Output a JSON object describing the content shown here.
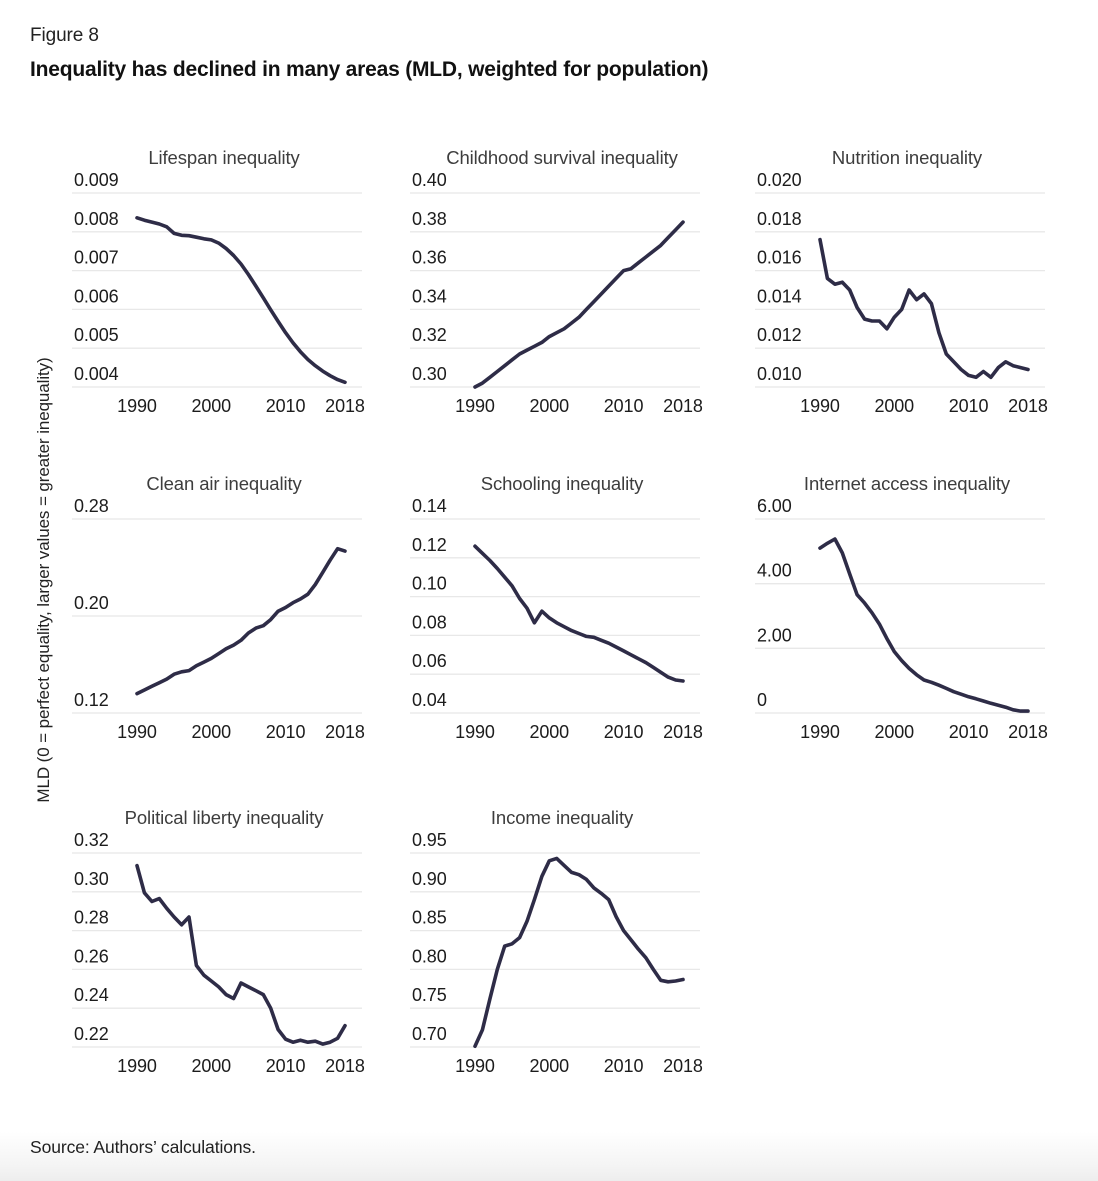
{
  "figure_label": "Figure 8",
  "title": "Inequality has declined in many areas (MLD, weighted for population)",
  "y_axis_label": "MLD (0 = perfect equality, larger values = greater inequality)",
  "source": "Source: Authors’ calculations.",
  "colors": {
    "line": "#2e2c47",
    "grid": "#e8e8e8",
    "tick_text": "#1c1c1c",
    "chart_title_text": "#3d3d3d"
  },
  "years": [
    1990,
    1991,
    1992,
    1993,
    1994,
    1995,
    1996,
    1997,
    1998,
    1999,
    2000,
    2001,
    2002,
    2003,
    2004,
    2005,
    2006,
    2007,
    2008,
    2009,
    2010,
    2011,
    2012,
    2013,
    2014,
    2015,
    2016,
    2017,
    2018
  ],
  "x_tick_labels": [
    "1990",
    "2000",
    "2010",
    "2018"
  ],
  "x_tick_years": [
    1990,
    2000,
    2010,
    2018
  ],
  "chart_data": [
    {
      "type": "line",
      "title": "Lifespan inequality",
      "y_tick_labels": [
        "0.009",
        "0.008",
        "0.007",
        "0.006",
        "0.005",
        "0.004"
      ],
      "y_tick_values": [
        0.009,
        0.008,
        0.007,
        0.006,
        0.005,
        0.004
      ],
      "values": [
        0.00836,
        0.0083,
        0.00825,
        0.0082,
        0.00813,
        0.00796,
        0.00791,
        0.0079,
        0.00786,
        0.00782,
        0.00779,
        0.00771,
        0.00757,
        0.00739,
        0.00717,
        0.0069,
        0.0066,
        0.0063,
        0.00599,
        0.00569,
        0.0054,
        0.00514,
        0.00491,
        0.00471,
        0.00455,
        0.00441,
        0.00429,
        0.00419,
        0.00412
      ]
    },
    {
      "type": "line",
      "title": "Childhood survival inequality",
      "y_tick_labels": [
        "0.40",
        "0.38",
        "0.36",
        "0.34",
        "0.32",
        "0.30"
      ],
      "y_tick_values": [
        0.4,
        0.38,
        0.36,
        0.34,
        0.32,
        0.3
      ],
      "values": [
        0.3,
        0.302,
        0.305,
        0.308,
        0.311,
        0.314,
        0.317,
        0.319,
        0.321,
        0.323,
        0.326,
        0.328,
        0.33,
        0.333,
        0.336,
        0.34,
        0.344,
        0.348,
        0.352,
        0.356,
        0.36,
        0.361,
        0.364,
        0.367,
        0.37,
        0.373,
        0.377,
        0.381,
        0.385
      ]
    },
    {
      "type": "line",
      "title": "Nutrition inequality",
      "y_tick_labels": [
        "0.020",
        "0.018",
        "0.016",
        "0.014",
        "0.012",
        "0.010"
      ],
      "y_tick_values": [
        0.02,
        0.018,
        0.016,
        0.014,
        0.012,
        0.01
      ],
      "values": [
        0.0176,
        0.0156,
        0.0153,
        0.0154,
        0.015,
        0.0141,
        0.0135,
        0.0134,
        0.0134,
        0.013,
        0.0136,
        0.014,
        0.015,
        0.0145,
        0.0148,
        0.0143,
        0.0128,
        0.0117,
        0.0113,
        0.0109,
        0.0106,
        0.0105,
        0.0108,
        0.0105,
        0.011,
        0.0113,
        0.0111,
        0.011,
        0.0109
      ]
    },
    {
      "type": "line",
      "title": "Clean air inequality",
      "y_tick_labels": [
        "0.28",
        "0.20",
        "0.12"
      ],
      "y_tick_values": [
        0.28,
        0.2,
        0.12
      ],
      "values": [
        0.136,
        0.139,
        0.142,
        0.145,
        0.148,
        0.152,
        0.154,
        0.155,
        0.159,
        0.162,
        0.165,
        0.169,
        0.173,
        0.176,
        0.18,
        0.186,
        0.19,
        0.192,
        0.197,
        0.204,
        0.207,
        0.211,
        0.214,
        0.218,
        0.226,
        0.236,
        0.246,
        0.2555,
        0.2535
      ]
    },
    {
      "type": "line",
      "title": "Schooling inequality",
      "y_tick_labels": [
        "0.14",
        "0.12",
        "0.10",
        "0.08",
        "0.06",
        "0.04"
      ],
      "y_tick_values": [
        0.14,
        0.12,
        0.1,
        0.08,
        0.06,
        0.04
      ],
      "values": [
        0.126,
        0.1223,
        0.1186,
        0.1145,
        0.11,
        0.1055,
        0.099,
        0.094,
        0.0865,
        0.0925,
        0.089,
        0.0865,
        0.0845,
        0.0825,
        0.081,
        0.0795,
        0.079,
        0.0775,
        0.076,
        0.074,
        0.072,
        0.07,
        0.068,
        0.066,
        0.0635,
        0.061,
        0.0585,
        0.057,
        0.0565
      ]
    },
    {
      "type": "line",
      "title": "Internet access inequality",
      "y_tick_labels": [
        "6.00",
        "4.00",
        "2.00",
        "0"
      ],
      "y_tick_values": [
        6.0,
        4.0,
        2.0,
        0.0
      ],
      "values": [
        5.1,
        5.25,
        5.38,
        4.95,
        4.3,
        3.66,
        3.4,
        3.1,
        2.75,
        2.3,
        1.9,
        1.62,
        1.38,
        1.18,
        1.02,
        0.95,
        0.86,
        0.76,
        0.66,
        0.58,
        0.5,
        0.44,
        0.37,
        0.3,
        0.24,
        0.18,
        0.1,
        0.06,
        0.06
      ]
    },
    {
      "type": "line",
      "title": "Political liberty inequality",
      "y_tick_labels": [
        "0.32",
        "0.30",
        "0.28",
        "0.26",
        "0.24",
        "0.22"
      ],
      "y_tick_values": [
        0.32,
        0.3,
        0.28,
        0.26,
        0.24,
        0.22
      ],
      "values": [
        0.3135,
        0.2995,
        0.295,
        0.2965,
        0.2915,
        0.287,
        0.283,
        0.287,
        0.262,
        0.257,
        0.254,
        0.251,
        0.247,
        0.245,
        0.253,
        0.251,
        0.249,
        0.247,
        0.24,
        0.229,
        0.224,
        0.2225,
        0.2235,
        0.2225,
        0.223,
        0.2215,
        0.2225,
        0.2245,
        0.231
      ]
    },
    {
      "type": "line",
      "title": "Income inequality",
      "y_tick_labels": [
        "0.95",
        "0.90",
        "0.85",
        "0.80",
        "0.75",
        "0.70"
      ],
      "y_tick_values": [
        0.95,
        0.9,
        0.85,
        0.8,
        0.75,
        0.7
      ],
      "values": [
        0.701,
        0.722,
        0.762,
        0.8,
        0.83,
        0.833,
        0.841,
        0.862,
        0.89,
        0.92,
        0.94,
        0.943,
        0.934,
        0.925,
        0.922,
        0.916,
        0.905,
        0.898,
        0.89,
        0.868,
        0.85,
        0.838,
        0.826,
        0.815,
        0.8,
        0.786,
        0.784,
        0.785,
        0.787
      ]
    }
  ],
  "layout_notes": {
    "grid": "on",
    "legend": "none",
    "x_range": [
      1990,
      2018
    ]
  }
}
